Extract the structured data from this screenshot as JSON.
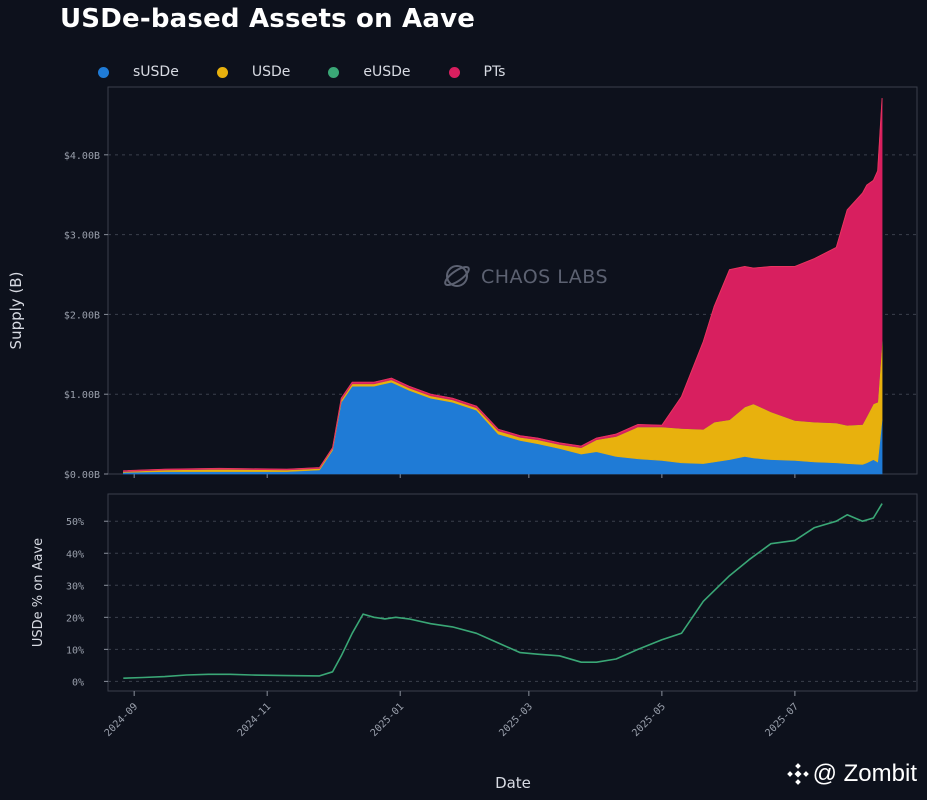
{
  "title": "USDe-based Assets on Aave",
  "watermark": "CHAOS LABS",
  "credit": "@ Zombit",
  "legend": [
    {
      "name": "sUSDe",
      "color": "#1f7bd6"
    },
    {
      "name": "USDe",
      "color": "#e8b10d"
    },
    {
      "name": "eUSDe",
      "color": "#3aa776"
    },
    {
      "name": "PTs",
      "color": "#d81f5f"
    }
  ],
  "chart_data": [
    {
      "type": "area",
      "stacked": true,
      "ylabel": "Supply (B)",
      "ylim": [
        0,
        4.85
      ],
      "xlim": [
        "2024-08-20",
        "2025-08-26"
      ],
      "yticks": [
        0,
        1,
        2,
        3,
        4
      ],
      "ytick_labels": [
        "$0.00B",
        "$1.00B",
        "$2.00B",
        "$3.00B",
        "$4.00B"
      ],
      "grid": true,
      "legend_position": "top-left",
      "x": [
        "2024-08-27",
        "2024-09-15",
        "2024-10-10",
        "2024-11-10",
        "2024-11-25",
        "2024-12-01",
        "2024-12-05",
        "2024-12-10",
        "2024-12-15",
        "2024-12-20",
        "2024-12-28",
        "2025-01-05",
        "2025-01-15",
        "2025-01-25",
        "2025-02-05",
        "2025-02-15",
        "2025-02-25",
        "2025-03-05",
        "2025-03-15",
        "2025-03-25",
        "2025-04-01",
        "2025-04-10",
        "2025-04-20",
        "2025-05-01",
        "2025-05-10",
        "2025-05-20",
        "2025-05-25",
        "2025-06-01",
        "2025-06-08",
        "2025-06-12",
        "2025-06-20",
        "2025-07-01",
        "2025-07-10",
        "2025-07-20",
        "2025-07-25",
        "2025-08-01",
        "2025-08-03",
        "2025-08-06",
        "2025-08-08",
        "2025-08-10"
      ],
      "series": [
        {
          "name": "sUSDe",
          "values": [
            0.02,
            0.03,
            0.03,
            0.03,
            0.05,
            0.3,
            0.9,
            1.1,
            1.1,
            1.1,
            1.15,
            1.05,
            0.95,
            0.9,
            0.8,
            0.5,
            0.42,
            0.38,
            0.32,
            0.25,
            0.28,
            0.22,
            0.19,
            0.17,
            0.14,
            0.13,
            0.15,
            0.18,
            0.22,
            0.2,
            0.18,
            0.17,
            0.15,
            0.14,
            0.13,
            0.12,
            0.14,
            0.18,
            0.15,
            0.68
          ]
        },
        {
          "name": "USDe",
          "values": [
            0.01,
            0.02,
            0.03,
            0.02,
            0.02,
            0.02,
            0.03,
            0.03,
            0.03,
            0.03,
            0.03,
            0.03,
            0.03,
            0.03,
            0.03,
            0.04,
            0.04,
            0.05,
            0.05,
            0.08,
            0.15,
            0.25,
            0.4,
            0.42,
            0.43,
            0.43,
            0.5,
            0.5,
            0.62,
            0.68,
            0.6,
            0.5,
            0.5,
            0.5,
            0.48,
            0.5,
            0.58,
            0.7,
            0.75,
            0.98
          ]
        },
        {
          "name": "eUSDe",
          "values": [
            0,
            0,
            0,
            0,
            0,
            0,
            0,
            0,
            0,
            0,
            0,
            0,
            0,
            0,
            0,
            0,
            0,
            0,
            0,
            0,
            0,
            0,
            0,
            0,
            0,
            0,
            0,
            0,
            0,
            0,
            0,
            0,
            0,
            0,
            0,
            0,
            0,
            0,
            0,
            0
          ]
        },
        {
          "name": "PTs",
          "values": [
            0.01,
            0.01,
            0.01,
            0.01,
            0.01,
            0.01,
            0.02,
            0.02,
            0.02,
            0.02,
            0.02,
            0.02,
            0.02,
            0.02,
            0.02,
            0.02,
            0.02,
            0.02,
            0.02,
            0.02,
            0.02,
            0.03,
            0.03,
            0.02,
            0.4,
            1.1,
            1.45,
            1.88,
            1.76,
            1.7,
            1.82,
            1.93,
            2.05,
            2.2,
            2.7,
            2.9,
            2.9,
            2.8,
            2.9,
            3.05
          ]
        }
      ]
    },
    {
      "type": "line",
      "ylabel": "USDe % on Aave",
      "xlabel": "Date",
      "ylim": [
        -0.03,
        0.585
      ],
      "xlim": [
        "2024-08-20",
        "2025-08-26"
      ],
      "yticks": [
        0,
        0.1,
        0.2,
        0.3,
        0.4,
        0.5
      ],
      "ytick_labels": [
        "0%",
        "10%",
        "20%",
        "30%",
        "40%",
        "50%"
      ],
      "xticks": [
        "2024-09-01",
        "2024-11-01",
        "2025-01-01",
        "2025-03-01",
        "2025-05-01",
        "2025-07-01"
      ],
      "xtick_labels": [
        "2024-09",
        "2024-11",
        "2025-01",
        "2025-03",
        "2025-05",
        "2025-07"
      ],
      "grid": true,
      "series": [
        {
          "name": "USDe %",
          "color": "#3aa776",
          "x": [
            "2024-08-27",
            "2024-09-05",
            "2024-09-15",
            "2024-09-25",
            "2024-10-05",
            "2024-10-15",
            "2024-10-25",
            "2024-11-10",
            "2024-11-25",
            "2024-12-01",
            "2024-12-05",
            "2024-12-10",
            "2024-12-15",
            "2024-12-20",
            "2024-12-25",
            "2024-12-30",
            "2025-01-05",
            "2025-01-15",
            "2025-01-25",
            "2025-02-05",
            "2025-02-15",
            "2025-02-25",
            "2025-03-05",
            "2025-03-15",
            "2025-03-25",
            "2025-04-01",
            "2025-04-10",
            "2025-04-20",
            "2025-05-01",
            "2025-05-10",
            "2025-05-20",
            "2025-06-01",
            "2025-06-10",
            "2025-06-20",
            "2025-07-01",
            "2025-07-10",
            "2025-07-20",
            "2025-07-25",
            "2025-08-01",
            "2025-08-06",
            "2025-08-10"
          ],
          "values": [
            0.01,
            0.012,
            0.015,
            0.02,
            0.022,
            0.022,
            0.02,
            0.018,
            0.017,
            0.03,
            0.08,
            0.15,
            0.21,
            0.2,
            0.195,
            0.2,
            0.195,
            0.18,
            0.17,
            0.15,
            0.12,
            0.09,
            0.085,
            0.08,
            0.06,
            0.06,
            0.07,
            0.1,
            0.13,
            0.15,
            0.25,
            0.33,
            0.38,
            0.43,
            0.44,
            0.48,
            0.5,
            0.52,
            0.5,
            0.51,
            0.555
          ]
        }
      ]
    }
  ]
}
